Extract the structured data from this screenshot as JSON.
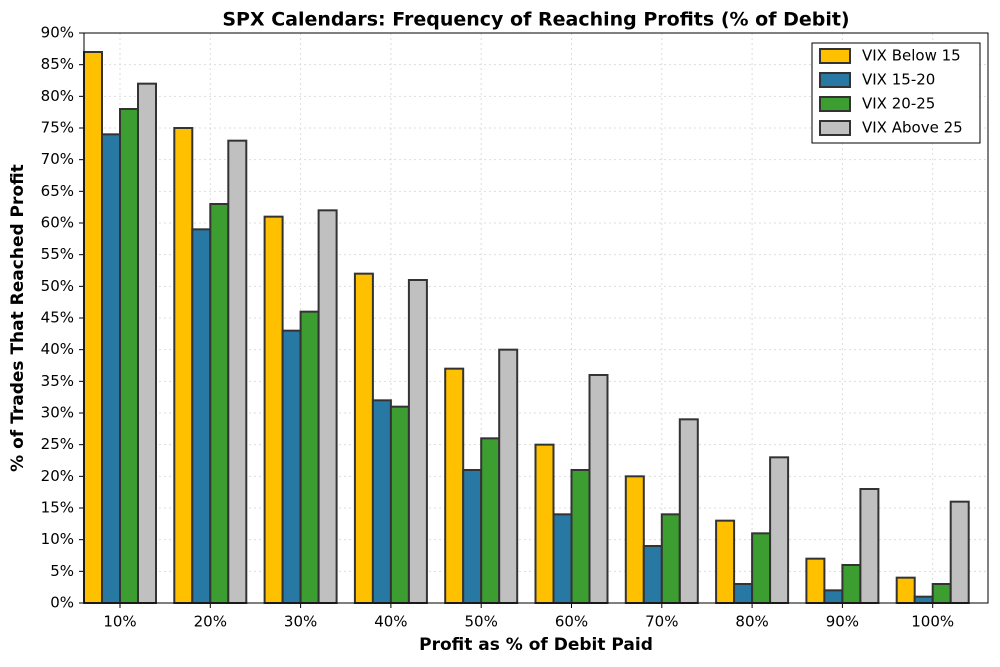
{
  "chart_data": {
    "type": "bar",
    "title": "SPX Calendars: Frequency of Reaching Profits (% of Debit)",
    "x_label": "Profit as % of Debit Paid",
    "y_label": "% of Trades That Reached Profit",
    "categories": [
      "10%",
      "20%",
      "30%",
      "40%",
      "50%",
      "60%",
      "70%",
      "80%",
      "90%",
      "100%"
    ],
    "series": [
      {
        "name": "VIX Below 15",
        "color": "#ffc000",
        "values": [
          87,
          75,
          61,
          52,
          37,
          25,
          20,
          13,
          7,
          4
        ]
      },
      {
        "name": "VIX 15-20",
        "color": "#2878a4",
        "values": [
          74,
          59,
          43,
          32,
          21,
          14,
          9,
          3,
          2,
          1
        ]
      },
      {
        "name": "VIX 20-25",
        "color": "#3c9e30",
        "values": [
          78,
          63,
          46,
          31,
          26,
          21,
          14,
          11,
          6,
          3
        ]
      },
      {
        "name": "VIX Above 25",
        "color": "#c0c0c0",
        "values": [
          82,
          73,
          62,
          51,
          40,
          36,
          29,
          23,
          18,
          16
        ]
      }
    ],
    "ylim": [
      0,
      90
    ],
    "yticks": [
      {
        "value": 0,
        "label": "0%"
      },
      {
        "value": 5,
        "label": "5%"
      },
      {
        "value": 10,
        "label": "10%"
      },
      {
        "value": 15,
        "label": "15%"
      },
      {
        "value": 20,
        "label": "20%"
      },
      {
        "value": 25,
        "label": "25%"
      },
      {
        "value": 30,
        "label": "30%"
      },
      {
        "value": 35,
        "label": "35%"
      },
      {
        "value": 40,
        "label": "40%"
      },
      {
        "value": 45,
        "label": "45%"
      },
      {
        "value": 50,
        "label": "50%"
      },
      {
        "value": 55,
        "label": "55%"
      },
      {
        "value": 60,
        "label": "60%"
      },
      {
        "value": 65,
        "label": "65%"
      },
      {
        "value": 70,
        "label": "70%"
      },
      {
        "value": 75,
        "label": "75%"
      },
      {
        "value": 80,
        "label": "80%"
      },
      {
        "value": 85,
        "label": "85%"
      },
      {
        "value": 90,
        "label": "90%"
      }
    ],
    "grid": true,
    "legend": "upper right"
  }
}
